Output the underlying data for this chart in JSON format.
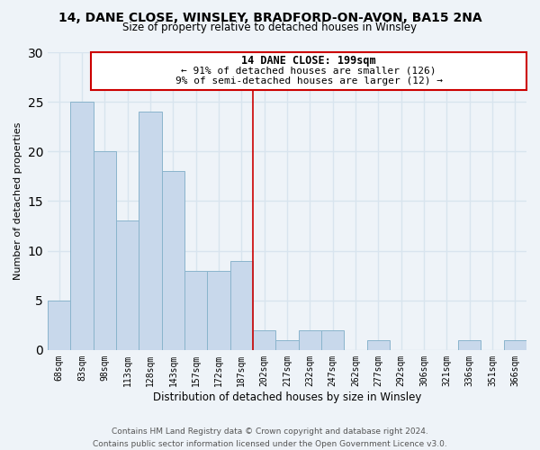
{
  "title": "14, DANE CLOSE, WINSLEY, BRADFORD-ON-AVON, BA15 2NA",
  "subtitle": "Size of property relative to detached houses in Winsley",
  "xlabel": "Distribution of detached houses by size in Winsley",
  "ylabel": "Number of detached properties",
  "bar_labels": [
    "68sqm",
    "83sqm",
    "98sqm",
    "113sqm",
    "128sqm",
    "143sqm",
    "157sqm",
    "172sqm",
    "187sqm",
    "202sqm",
    "217sqm",
    "232sqm",
    "247sqm",
    "262sqm",
    "277sqm",
    "292sqm",
    "306sqm",
    "321sqm",
    "336sqm",
    "351sqm",
    "366sqm"
  ],
  "bar_values": [
    5,
    25,
    20,
    13,
    24,
    18,
    8,
    8,
    9,
    2,
    1,
    2,
    2,
    0,
    1,
    0,
    0,
    0,
    1,
    0,
    1
  ],
  "bar_color": "#c8d8eb",
  "bar_edge_color": "#8ab4cc",
  "vline_x": 8.5,
  "vline_color": "#cc0000",
  "ylim": [
    0,
    30
  ],
  "yticks": [
    0,
    5,
    10,
    15,
    20,
    25,
    30
  ],
  "annotation_title": "14 DANE CLOSE: 199sqm",
  "annotation_line1": "← 91% of detached houses are smaller (126)",
  "annotation_line2": "9% of semi-detached houses are larger (12) →",
  "annotation_box_color": "#ffffff",
  "annotation_border_color": "#cc0000",
  "footer_line1": "Contains HM Land Registry data © Crown copyright and database right 2024.",
  "footer_line2": "Contains public sector information licensed under the Open Government Licence v3.0.",
  "bg_color": "#eef3f8",
  "grid_color": "#d8e4ee",
  "title_fontsize": 10,
  "subtitle_fontsize": 8.5,
  "ylabel_fontsize": 8,
  "xlabel_fontsize": 8.5,
  "annotation_title_fontsize": 8.5,
  "annotation_line_fontsize": 8,
  "tick_fontsize": 7,
  "footer_fontsize": 6.5
}
